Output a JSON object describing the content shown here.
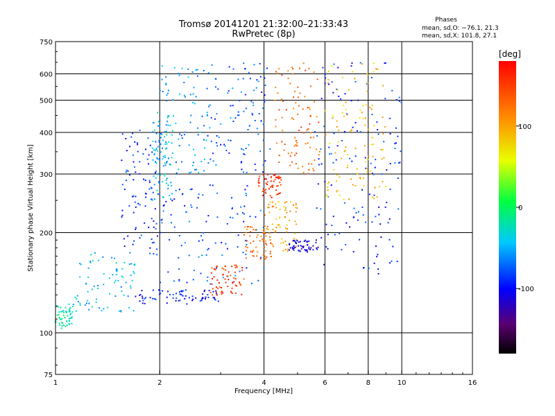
{
  "chart_data": {
    "type": "scatter",
    "title": "Tromsø 20141201 21:32:00–21:33:43",
    "subtitle": "RwPretec (8p)",
    "xlabel": "Frequency [MHz]",
    "ylabel": "Stationary phase Virtual Height [km]",
    "x_scale": "log",
    "y_scale": "log",
    "xlim": [
      1,
      16
    ],
    "ylim": [
      75,
      750
    ],
    "x_ticks": [
      1,
      2,
      4,
      6,
      8,
      10,
      16
    ],
    "y_ticks": [
      75,
      100,
      200,
      300,
      400,
      500,
      600,
      750
    ],
    "x_gridlines": [
      2,
      4,
      6,
      8,
      10
    ],
    "y_gridlines": [
      100,
      200,
      300,
      400,
      500,
      600
    ],
    "stats": {
      "heading": "Phases",
      "line_o": "mean, sd,O: −76.1, 21.3",
      "line_x": "mean, sd,X: 101.8, 27.1"
    },
    "colorbar": {
      "label": "[deg]",
      "range": [
        -180,
        180
      ],
      "ticks": [
        100,
        0,
        -100
      ],
      "colormap": "rainbow (black-purple-blue-cyan-green-yellow-orange-red)"
    },
    "point_groups": [
      {
        "x": [
          1.0,
          1.12
        ],
        "y": [
          103,
          122
        ],
        "phase": -20
      },
      {
        "x": [
          1.12,
          1.7
        ],
        "y": [
          115,
          175
        ],
        "phase": -45
      },
      {
        "x": [
          1.55,
          2.0
        ],
        "y": [
          170,
          410
        ],
        "phase": -90
      },
      {
        "x": [
          1.9,
          2.2
        ],
        "y": [
          250,
          460
        ],
        "phase": -40
      },
      {
        "x": [
          1.7,
          3.0
        ],
        "y": [
          122,
          135
        ],
        "phase": -95
      },
      {
        "x": [
          2.0,
          4.0
        ],
        "y": [
          140,
          280
        ],
        "phase": -80
      },
      {
        "x": [
          2.0,
          2.8
        ],
        "y": [
          300,
          640
        ],
        "phase": -55
      },
      {
        "x": [
          2.8,
          4.2
        ],
        "y": [
          300,
          650
        ],
        "phase": -75
      },
      {
        "x": [
          2.8,
          3.5
        ],
        "y": [
          130,
          160
        ],
        "phase": 150
      },
      {
        "x": [
          3.5,
          4.2
        ],
        "y": [
          165,
          210
        ],
        "phase": 125
      },
      {
        "x": [
          3.8,
          4.5
        ],
        "y": [
          255,
          300
        ],
        "phase": 160
      },
      {
        "x": [
          4.0,
          5.0
        ],
        "y": [
          175,
          250
        ],
        "phase": 100
      },
      {
        "x": [
          4.3,
          5.8
        ],
        "y": [
          300,
          650
        ],
        "phase": 130
      },
      {
        "x": [
          4.7,
          5.8
        ],
        "y": [
          175,
          190
        ],
        "phase": -110
      },
      {
        "x": [
          5.6,
          10.0
        ],
        "y": [
          150,
          650
        ],
        "phase": -90
      },
      {
        "x": [
          6.0,
          9.0
        ],
        "y": [
          250,
          650
        ],
        "phase": 90
      }
    ]
  }
}
